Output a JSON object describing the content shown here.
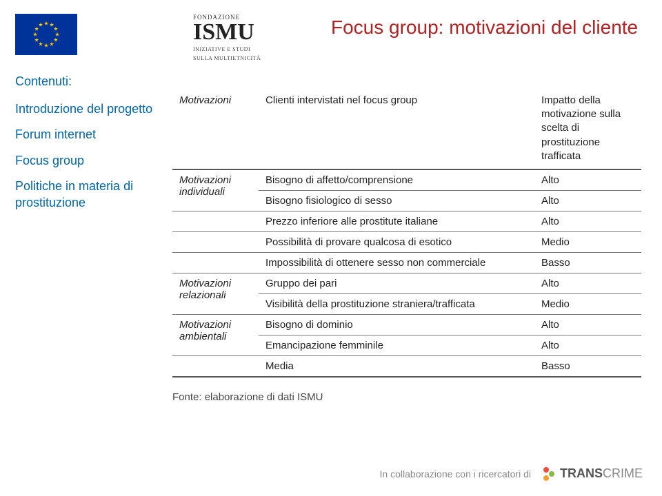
{
  "colors": {
    "eu_flag_bg": "#003399",
    "eu_star": "#ffcc00",
    "sidebar_text": "#0066a6",
    "title_text": "#b22222",
    "body_text": "#222222",
    "rule": "#777777",
    "footer_text": "#888888",
    "tc_dot1": "#e94e3a",
    "tc_dot2": "#88bb44",
    "tc_dot3": "#f0a030"
  },
  "sidebar": {
    "heading": "Contenuti:",
    "items": [
      "Introduzione del progetto",
      "Forum internet",
      "Focus group",
      "Politiche in materia di prostituzione"
    ]
  },
  "logo": {
    "fond": "FONDAZIONE",
    "main": "ISMU",
    "sub1": "INIZIATIVE E STUDI",
    "sub2": "SULLA MULTIETNICITÀ"
  },
  "title": "Focus group: motivazioni del cliente",
  "table": {
    "head": {
      "c0": "Motivazioni",
      "c1": "Clienti intervistati nel focus group",
      "c2": "Impatto della motivazione sulla scelta di prostituzione trafficata"
    },
    "rows": [
      {
        "cat": "Motivazioni individuali",
        "desc": "Bisogno di affetto/comprensione",
        "impact": "Alto",
        "catrowspan": 2
      },
      {
        "cat": "",
        "desc": "Bisogno fisiologico di sesso",
        "impact": "Alto"
      },
      {
        "cat": "",
        "desc": "Prezzo inferiore alle prostitute italiane",
        "impact": "Alto"
      },
      {
        "cat": "",
        "desc": "Possibilità di provare qualcosa di esotico",
        "impact": "Medio"
      },
      {
        "cat": "",
        "desc": "Impossibilità di ottenere sesso non commerciale",
        "impact": "Basso",
        "twoLine": true
      },
      {
        "cat": "Motivazioni relazionali",
        "desc": "Gruppo dei pari",
        "impact": "Alto",
        "catrowspan": 2
      },
      {
        "cat": "",
        "desc": "Visibilità della prostituzione straniera/trafficata",
        "impact": "Medio",
        "twoLine": true
      },
      {
        "cat": "Motivazioni ambientali",
        "desc": "Bisogno di dominio",
        "impact": "Alto",
        "catrowspan": 2
      },
      {
        "cat": "",
        "desc": "Emancipazione femminile",
        "impact": "Alto"
      },
      {
        "cat": "",
        "desc": "Media",
        "impact": "Basso"
      }
    ]
  },
  "source": "Fonte: elaborazione di dati ISMU",
  "footer": {
    "collab": "In collaborazione con i ricercatori di",
    "brand1": "TRANS",
    "brand2": "CRIME"
  }
}
